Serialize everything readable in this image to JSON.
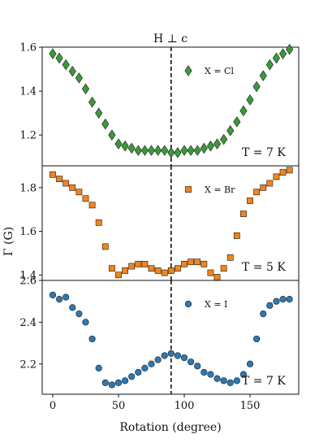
{
  "chart_data": {
    "type": "scatter",
    "title": "H ⊥ c",
    "xlabel": "Rotation (degree)",
    "ylabel": "Γ (G)",
    "x_ticks": [
      0,
      50,
      100,
      150
    ],
    "xlim": [
      -8,
      187
    ],
    "reference_line_x": 90,
    "panels": [
      {
        "legend": "X = Cl",
        "annotation": "T = 7 K",
        "marker": "diamond",
        "color": "#3a9a3a",
        "ylim": [
          1.06,
          1.6
        ],
        "y_ticks": [
          1.2,
          1.4,
          1.6
        ],
        "y_tick_labels": [
          "1.2",
          "1.4",
          "1.6"
        ],
        "x": [
          0,
          5,
          10,
          15,
          20,
          25,
          30,
          35,
          40,
          45,
          50,
          55,
          60,
          65,
          70,
          75,
          80,
          85,
          90,
          95,
          100,
          105,
          110,
          115,
          120,
          125,
          130,
          135,
          140,
          145,
          150,
          155,
          160,
          165,
          170,
          175,
          180
        ],
        "y": [
          1.57,
          1.55,
          1.52,
          1.49,
          1.46,
          1.41,
          1.35,
          1.3,
          1.25,
          1.2,
          1.16,
          1.15,
          1.14,
          1.13,
          1.13,
          1.13,
          1.13,
          1.13,
          1.12,
          1.12,
          1.13,
          1.13,
          1.13,
          1.14,
          1.15,
          1.16,
          1.18,
          1.22,
          1.26,
          1.31,
          1.36,
          1.42,
          1.47,
          1.52,
          1.55,
          1.57,
          1.59
        ]
      },
      {
        "legend": "X = Br",
        "annotation": "T = 5 K",
        "marker": "square",
        "color": "#f0841e",
        "ylim": [
          1.375,
          1.9
        ],
        "y_ticks": [
          1.4,
          1.6,
          1.8
        ],
        "y_tick_labels": [
          "1.4",
          "1.6",
          "1.8"
        ],
        "x": [
          0,
          5,
          10,
          15,
          20,
          25,
          30,
          35,
          40,
          45,
          50,
          55,
          60,
          65,
          70,
          75,
          80,
          85,
          90,
          95,
          100,
          105,
          110,
          115,
          120,
          125,
          130,
          135,
          140,
          145,
          150,
          155,
          160,
          165,
          170,
          175,
          180
        ],
        "y": [
          1.86,
          1.84,
          1.82,
          1.8,
          1.78,
          1.75,
          1.72,
          1.64,
          1.53,
          1.43,
          1.4,
          1.42,
          1.44,
          1.45,
          1.45,
          1.43,
          1.42,
          1.41,
          1.42,
          1.43,
          1.45,
          1.46,
          1.46,
          1.45,
          1.41,
          1.39,
          1.43,
          1.48,
          1.58,
          1.68,
          1.74,
          1.78,
          1.8,
          1.82,
          1.85,
          1.87,
          1.88
        ]
      },
      {
        "legend": "X = I",
        "annotation": "T = 7 K",
        "marker": "circle",
        "color": "#2b79b5",
        "ylim": [
          2.055,
          2.6
        ],
        "y_ticks": [
          2.2,
          2.4,
          2.6
        ],
        "y_tick_labels": [
          "2.2",
          "2.4",
          "2.6"
        ],
        "x": [
          0,
          5,
          10,
          15,
          20,
          25,
          30,
          35,
          40,
          45,
          50,
          55,
          60,
          65,
          70,
          75,
          80,
          85,
          90,
          95,
          100,
          105,
          110,
          115,
          120,
          125,
          130,
          135,
          140,
          145,
          150,
          155,
          160,
          165,
          170,
          175,
          180
        ],
        "y": [
          2.53,
          2.51,
          2.52,
          2.47,
          2.44,
          2.4,
          2.32,
          2.18,
          2.11,
          2.1,
          2.11,
          2.12,
          2.14,
          2.16,
          2.18,
          2.2,
          2.22,
          2.24,
          2.25,
          2.24,
          2.23,
          2.21,
          2.19,
          2.16,
          2.15,
          2.13,
          2.12,
          2.11,
          2.12,
          2.15,
          2.2,
          2.32,
          2.44,
          2.48,
          2.5,
          2.51,
          2.51
        ]
      }
    ]
  }
}
